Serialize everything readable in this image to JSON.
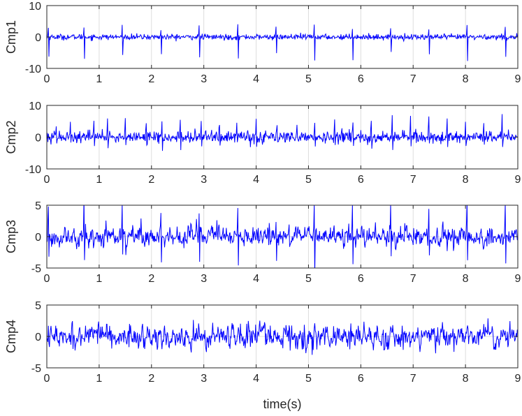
{
  "chart_data": [
    {
      "type": "line",
      "ylabel": "Cmp1",
      "xlim": [
        0,
        9
      ],
      "ylim": [
        -10,
        10
      ],
      "xticks": [
        0,
        1,
        2,
        3,
        4,
        5,
        6,
        7,
        8,
        9
      ],
      "yticks": [
        -10,
        0,
        10
      ],
      "grid": true,
      "color": "#0000ff",
      "series": [
        {
          "pattern": "periodic-spike",
          "sample_rate_hz": 100,
          "baseline_noise": 0.45,
          "spike_times": [
            0.03,
            0.71,
            1.44,
            2.18,
            2.91,
            3.65,
            4.38,
            5.11,
            5.84,
            6.57,
            7.3,
            8.03,
            8.76
          ],
          "spike_peak": 3.0,
          "spike_trough": -6.5
        }
      ]
    },
    {
      "type": "line",
      "ylabel": "Cmp2",
      "xlim": [
        0,
        9
      ],
      "ylim": [
        -10,
        10
      ],
      "xticks": [
        0,
        1,
        2,
        3,
        4,
        5,
        6,
        7,
        8,
        9
      ],
      "yticks": [
        -10,
        0,
        10
      ],
      "grid": true,
      "color": "#0000ff",
      "series": [
        {
          "pattern": "periodic-spike",
          "sample_rate_hz": 100,
          "baseline_noise": 0.9,
          "spike_times": [
            0.18,
            0.45,
            0.9,
            1.16,
            1.5,
            1.9,
            2.2,
            2.55,
            2.95,
            3.3,
            3.63,
            4.0,
            4.4,
            4.78,
            5.12,
            5.5,
            5.85,
            6.2,
            6.6,
            6.95,
            7.3,
            7.65,
            8.0,
            8.35,
            8.7
          ],
          "spike_peak": 5.5,
          "spike_trough": -3.0
        }
      ]
    },
    {
      "type": "line",
      "ylabel": "Cmp3",
      "xlim": [
        0,
        9
      ],
      "ylim": [
        -5,
        5
      ],
      "xticks": [
        0,
        1,
        2,
        3,
        4,
        5,
        6,
        7,
        8,
        9
      ],
      "yticks": [
        -5,
        0,
        5
      ],
      "grid": true,
      "color": "#0000ff",
      "series": [
        {
          "pattern": "noise-with-spikes",
          "sample_rate_hz": 100,
          "baseline_noise": 1.0,
          "spike_times": [
            0.03,
            0.71,
            1.44,
            2.18,
            2.91,
            3.65,
            4.38,
            5.11,
            5.84,
            6.57,
            7.3,
            8.03,
            8.76
          ],
          "spike_peak": 4.5,
          "spike_trough": -4.0
        }
      ]
    },
    {
      "type": "line",
      "ylabel": "Cmp4",
      "xlabel": "time(s)",
      "xlim": [
        0,
        9
      ],
      "ylim": [
        -5,
        5
      ],
      "xticks": [
        0,
        1,
        2,
        3,
        4,
        5,
        6,
        7,
        8,
        9
      ],
      "yticks": [
        -5,
        0,
        5
      ],
      "grid": true,
      "color": "#0000ff",
      "series": [
        {
          "pattern": "noise",
          "sample_rate_hz": 100,
          "baseline_noise": 1.2,
          "range": [
            -3.5,
            3.5
          ]
        }
      ]
    }
  ]
}
